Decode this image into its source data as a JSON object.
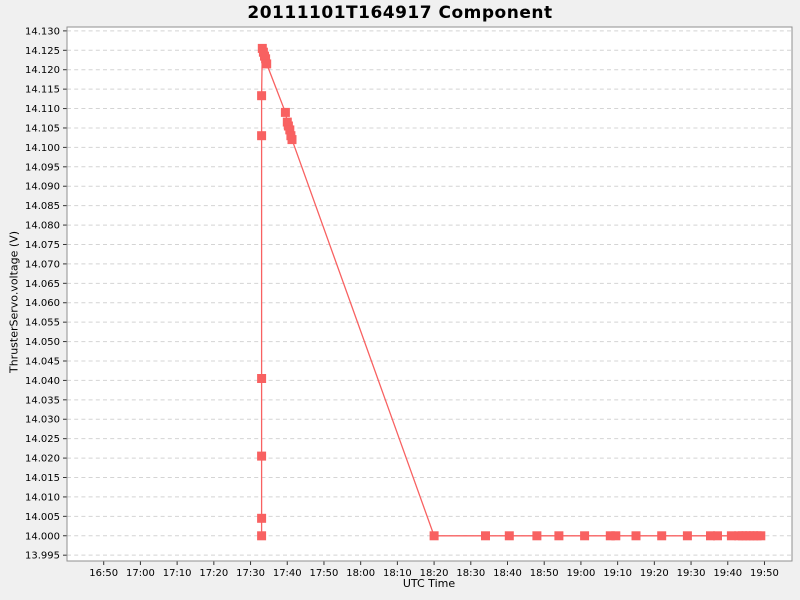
{
  "chart_data": {
    "type": "line",
    "title": "20111101T164917 Component",
    "xlabel": "UTC Time",
    "ylabel": "ThrusterServo.voltage (V)",
    "grid": "horizontal-dashed",
    "legend": "none",
    "x_unit": "minutes since 00:00 UTC",
    "x_range": [
      1000,
      1197.5
    ],
    "y_range": [
      13.9935,
      14.131
    ],
    "x_ticks": {
      "values": [
        1010,
        1020,
        1030,
        1040,
        1050,
        1060,
        1070,
        1080,
        1090,
        1100,
        1110,
        1120,
        1130,
        1140,
        1150,
        1160,
        1170,
        1180,
        1190
      ],
      "labels": [
        "16:50",
        "17:00",
        "17:10",
        "17:20",
        "17:30",
        "17:40",
        "17:50",
        "18:00",
        "18:10",
        "18:20",
        "18:30",
        "18:40",
        "18:50",
        "19:00",
        "19:10",
        "19:20",
        "19:30",
        "19:40",
        "19:50"
      ]
    },
    "y_ticks": {
      "values": [
        14.13,
        14.125,
        14.12,
        14.115,
        14.11,
        14.105,
        14.1,
        14.095,
        14.09,
        14.085,
        14.08,
        14.075,
        14.07,
        14.065,
        14.06,
        14.055,
        14.05,
        14.045,
        14.04,
        14.035,
        14.03,
        14.025,
        14.02,
        14.015,
        14.01,
        14.005,
        14.0,
        13.995
      ],
      "labels": [
        "14.130",
        "14.125",
        "14.120",
        "14.115",
        "14.110",
        "14.105",
        "14.100",
        "14.095",
        "14.090",
        "14.085",
        "14.080",
        "14.075",
        "14.070",
        "14.065",
        "14.060",
        "14.055",
        "14.050",
        "14.045",
        "14.040",
        "14.035",
        "14.030",
        "14.025",
        "14.020",
        "14.015",
        "14.010",
        "14.005",
        "14.000",
        "13.995"
      ]
    },
    "series": [
      {
        "name": "ThrusterServo.voltage",
        "marker": "square",
        "marker_size": 9,
        "line_width": 1.3,
        "points": [
          [
            1053.0,
            14.0
          ],
          [
            1053.0,
            14.0045
          ],
          [
            1053.0,
            14.0205
          ],
          [
            1053.0,
            14.0405
          ],
          [
            1053.0,
            14.103
          ],
          [
            1053.0,
            14.1133
          ],
          [
            1053.2,
            14.1255
          ],
          [
            1053.5,
            14.1245
          ],
          [
            1053.8,
            14.1235
          ],
          [
            1054.1,
            14.1228
          ],
          [
            1054.4,
            14.1215
          ],
          [
            1059.5,
            14.109
          ],
          [
            1060.0,
            14.1065
          ],
          [
            1060.3,
            14.1055
          ],
          [
            1060.7,
            14.1045
          ],
          [
            1061.0,
            14.103
          ],
          [
            1061.3,
            14.102
          ],
          [
            1100.0,
            14.0
          ],
          [
            1114.0,
            14.0
          ],
          [
            1120.5,
            14.0
          ],
          [
            1128.0,
            14.0
          ],
          [
            1134.0,
            14.0
          ],
          [
            1141.0,
            14.0
          ],
          [
            1148.0,
            14.0
          ],
          [
            1149.5,
            14.0
          ],
          [
            1155.0,
            14.0
          ],
          [
            1162.0,
            14.0
          ],
          [
            1169.0,
            14.0
          ],
          [
            1175.3,
            14.0
          ],
          [
            1177.2,
            14.0
          ],
          [
            1181.0,
            14.0
          ],
          [
            1183.0,
            14.0
          ],
          [
            1184.0,
            14.0
          ],
          [
            1185.0,
            14.0
          ],
          [
            1186.0,
            14.0
          ],
          [
            1187.0,
            14.0
          ],
          [
            1188.0,
            14.0
          ],
          [
            1189.0,
            14.0
          ]
        ]
      }
    ],
    "colors": {
      "line": "#f86161",
      "marker": "#f86161",
      "figure_background": "#f0f0f0",
      "plot_background": "#ffffff",
      "gridline": "#d4d4d4",
      "axis_border": "#8f8f8f",
      "tick": "#333333",
      "text": "#000000"
    }
  }
}
